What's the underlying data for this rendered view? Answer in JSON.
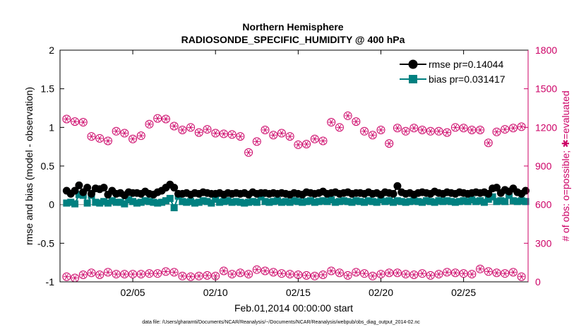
{
  "chart_data": {
    "type": "line",
    "title": [
      "Northern Hemisphere",
      "RADIOSONDE_SPECIFIC_HUMIDITY @ 400 hPa"
    ],
    "xlabel": "Feb.01,2014 00:00:00 start",
    "ylabel_left": "rmse and bias (model - observation)",
    "ylabel_right": "# of obs: o=possible; ✱=evaluated",
    "xlim": [
      0.6,
      28.9
    ],
    "ylim_left": [
      -1,
      2
    ],
    "ylim_right": [
      0,
      1800
    ],
    "x_ticks": [
      5,
      10,
      15,
      20,
      25
    ],
    "x_tick_labels": [
      "02/05",
      "02/10",
      "02/15",
      "02/20",
      "02/25"
    ],
    "y_left_ticks": [
      -1,
      -0.5,
      0,
      0.5,
      1,
      1.5,
      2
    ],
    "y_left_tick_labels": [
      "-1",
      "-0.5",
      "0",
      "0.5",
      "1",
      "1.5",
      "2"
    ],
    "y_right_ticks": [
      0,
      300,
      600,
      900,
      1200,
      1500,
      1800
    ],
    "y_right_tick_labels": [
      "0",
      "300",
      "600",
      "900",
      "1200",
      "1500",
      "1800"
    ],
    "legend": [
      "rmse pr=0.14044",
      "bias pr=0.031417"
    ],
    "legend_position": "top-right",
    "colors": {
      "rmse": "#000000",
      "bias": "#008080",
      "obs": "#cc0066",
      "axis_left": "#000000",
      "axis_right": "#cc0066"
    },
    "x_time": [
      1.0,
      1.25,
      1.5,
      1.75,
      2.0,
      2.25,
      2.5,
      2.75,
      3.0,
      3.25,
      3.5,
      3.75,
      4.0,
      4.25,
      4.5,
      4.75,
      5.0,
      5.25,
      5.5,
      5.75,
      6.0,
      6.25,
      6.5,
      6.75,
      7.0,
      7.25,
      7.5,
      7.75,
      8.0,
      8.25,
      8.5,
      8.75,
      9.0,
      9.25,
      9.5,
      9.75,
      10.0,
      10.25,
      10.5,
      10.75,
      11.0,
      11.25,
      11.5,
      11.75,
      12.0,
      12.25,
      12.5,
      12.75,
      13.0,
      13.25,
      13.5,
      13.75,
      14.0,
      14.25,
      14.5,
      14.75,
      15.0,
      15.25,
      15.5,
      15.75,
      16.0,
      16.25,
      16.5,
      16.75,
      17.0,
      17.25,
      17.5,
      17.75,
      18.0,
      18.25,
      18.5,
      18.75,
      19.0,
      19.25,
      19.5,
      19.75,
      20.0,
      20.25,
      20.5,
      20.75,
      21.0,
      21.25,
      21.5,
      21.75,
      22.0,
      22.25,
      22.5,
      22.75,
      23.0,
      23.25,
      23.5,
      23.75,
      24.0,
      24.25,
      24.5,
      24.75,
      25.0,
      25.25,
      25.5,
      25.75,
      26.0,
      26.25,
      26.5,
      26.75,
      27.0,
      27.25,
      27.5,
      27.75,
      28.0,
      28.25,
      28.5,
      28.75
    ],
    "rmse": [
      0.18,
      0.14,
      0.18,
      0.25,
      0.16,
      0.22,
      0.14,
      0.21,
      0.2,
      0.22,
      0.13,
      0.18,
      0.14,
      0.15,
      0.12,
      0.16,
      0.15,
      0.15,
      0.14,
      0.17,
      0.14,
      0.13,
      0.16,
      0.18,
      0.22,
      0.26,
      0.22,
      0.14,
      0.14,
      0.15,
      0.13,
      0.15,
      0.14,
      0.16,
      0.15,
      0.14,
      0.14,
      0.15,
      0.13,
      0.15,
      0.14,
      0.15,
      0.14,
      0.15,
      0.13,
      0.16,
      0.14,
      0.15,
      0.15,
      0.14,
      0.15,
      0.14,
      0.15,
      0.14,
      0.13,
      0.15,
      0.14,
      0.13,
      0.16,
      0.15,
      0.14,
      0.15,
      0.17,
      0.14,
      0.15,
      0.16,
      0.14,
      0.15,
      0.16,
      0.14,
      0.15,
      0.15,
      0.14,
      0.16,
      0.14,
      0.15,
      0.13,
      0.16,
      0.15,
      0.14,
      0.24,
      0.16,
      0.14,
      0.15,
      0.13,
      0.15,
      0.16,
      0.15,
      0.14,
      0.17,
      0.15,
      0.14,
      0.16,
      0.15,
      0.14,
      0.16,
      0.15,
      0.14,
      0.15,
      0.16,
      0.15,
      0.16,
      0.14,
      0.21,
      0.22,
      0.15,
      0.19,
      0.17,
      0.21,
      0.16,
      0.14,
      0.18
    ],
    "bias": [
      0.02,
      0.03,
      0.01,
      0.13,
      0.12,
      0.02,
      0.12,
      0.03,
      0.02,
      0.04,
      0.02,
      0.05,
      0.03,
      0.03,
      0.01,
      0.06,
      0.04,
      0.02,
      0.03,
      0.05,
      0.04,
      0.03,
      0.02,
      0.03,
      0.05,
      0.08,
      -0.04,
      0.11,
      0.04,
      0.03,
      0.04,
      0.02,
      0.03,
      0.05,
      0.04,
      0.02,
      0.07,
      0.03,
      0.04,
      0.05,
      0.03,
      0.04,
      0.03,
      0.02,
      0.03,
      0.04,
      0.03,
      0.1,
      0.04,
      0.03,
      0.04,
      0.05,
      0.03,
      0.04,
      0.03,
      0.05,
      0.04,
      0.03,
      0.04,
      0.05,
      0.03,
      0.04,
      0.05,
      0.04,
      0.06,
      0.03,
      0.04,
      0.05,
      0.04,
      0.03,
      0.05,
      0.04,
      0.03,
      0.05,
      0.04,
      0.03,
      0.06,
      0.04,
      0.05,
      0.03,
      0.05,
      0.04,
      0.03,
      0.04,
      0.05,
      0.04,
      0.03,
      0.05,
      0.04,
      0.03,
      0.05,
      0.04,
      0.05,
      0.04,
      0.03,
      0.04,
      0.05,
      0.04,
      0.06,
      0.04,
      0.05,
      0.03,
      0.07,
      0.1,
      0.04,
      0.05,
      0.04,
      0.12,
      0.05,
      0.04,
      0.05,
      0.04
    ],
    "x_obs": [
      1.0,
      1.5,
      2.0,
      2.5,
      3.0,
      3.5,
      4.0,
      4.5,
      5.0,
      5.5,
      6.0,
      6.5,
      7.0,
      7.5,
      8.0,
      8.5,
      9.0,
      9.5,
      10.0,
      10.5,
      11.0,
      11.5,
      12.0,
      12.5,
      13.0,
      13.5,
      14.0,
      14.5,
      15.0,
      15.5,
      16.0,
      16.5,
      17.0,
      17.5,
      18.0,
      18.5,
      19.0,
      19.5,
      20.0,
      20.5,
      21.0,
      21.5,
      22.0,
      22.5,
      23.0,
      23.5,
      24.0,
      24.5,
      25.0,
      25.5,
      26.0,
      26.5,
      27.0,
      27.5,
      28.0,
      28.5
    ],
    "obs_high": [
      1265,
      1245,
      1240,
      1130,
      1115,
      1095,
      1170,
      1155,
      1110,
      1135,
      1225,
      1270,
      1265,
      1210,
      1180,
      1200,
      1160,
      1185,
      1155,
      1150,
      1145,
      1130,
      1005,
      1090,
      1180,
      1140,
      1155,
      1130,
      1065,
      1070,
      1110,
      1095,
      1240,
      1200,
      1290,
      1245,
      1170,
      1140,
      1180,
      1075,
      1195,
      1170,
      1195,
      1180,
      1170,
      1170,
      1160,
      1200,
      1195,
      1180,
      1180,
      1080,
      1165,
      1185,
      1195,
      1205
    ],
    "obs_low": [
      40,
      30,
      55,
      70,
      55,
      75,
      60,
      60,
      60,
      60,
      65,
      65,
      80,
      75,
      45,
      40,
      45,
      50,
      45,
      85,
      60,
      70,
      60,
      95,
      85,
      75,
      65,
      60,
      55,
      50,
      45,
      55,
      85,
      70,
      50,
      75,
      65,
      45,
      60,
      70,
      70,
      60,
      55,
      65,
      50,
      60,
      75,
      70,
      65,
      60,
      100,
      80,
      70,
      65,
      75,
      40
    ]
  },
  "footer": "data file: /Users/gharamti/Documents/NCAR/Reanalysis/~/Documents/NCAR/Reanalysis/webpub/obs_diag_output_2014-02.nc"
}
